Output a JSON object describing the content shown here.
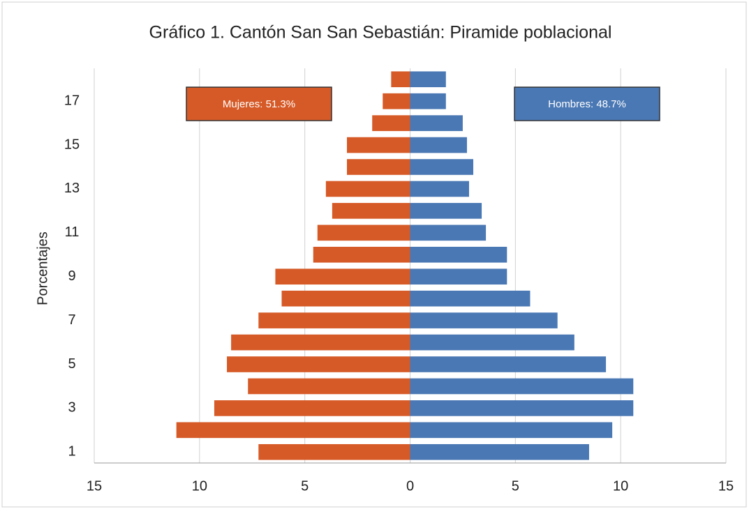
{
  "chart_data": {
    "type": "bar",
    "orientation": "horizontal",
    "title": "Gráfico  1. Cantón San San Sebastián:  Piramide poblacional",
    "y_label": "Porcentajes",
    "categories": [
      1,
      null,
      3,
      null,
      5,
      null,
      7,
      null,
      9,
      null,
      11,
      null,
      13,
      null,
      15,
      null,
      17,
      null
    ],
    "series": [
      {
        "name": "Mujeres",
        "color": "#d65a27",
        "values": [
          -7.2,
          -11.1,
          -9.3,
          -7.7,
          -8.7,
          -8.5,
          -7.2,
          -6.1,
          -6.4,
          -4.6,
          -4.4,
          -3.7,
          -4.0,
          -3.0,
          -3.0,
          -1.8,
          -1.3,
          -0.9
        ]
      },
      {
        "name": "Hombres",
        "color": "#4a78b4",
        "values": [
          8.5,
          9.6,
          10.6,
          10.6,
          9.3,
          7.8,
          7.0,
          5.7,
          4.6,
          4.6,
          3.6,
          3.4,
          2.8,
          3.0,
          2.7,
          2.5,
          1.7,
          1.7
        ]
      }
    ],
    "annotations": [
      {
        "text": "Mujeres: 51.3%"
      },
      {
        "text": "Hombres: 48.7%"
      }
    ],
    "xlim": [
      -15,
      15
    ],
    "xticks": [
      {
        "value": -15,
        "label": "15"
      },
      {
        "value": -10,
        "label": "10"
      },
      {
        "value": -5,
        "label": "5"
      },
      0,
      5,
      10,
      15
    ],
    "grid": true
  }
}
